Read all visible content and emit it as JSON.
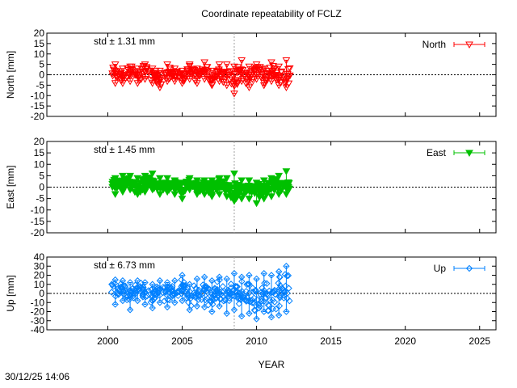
{
  "footer_timestamp": "30/12/25 14:06",
  "chart_data": [
    {
      "type": "scatter",
      "title": "Coordinate repeatability of FCLZ",
      "ylabel": "North [mm]",
      "xlabel": "",
      "xlim": [
        1995.9,
        2026.1
      ],
      "ylim": [
        -20,
        20
      ],
      "yticks": [
        -20,
        -15,
        -10,
        -5,
        0,
        5,
        10,
        15,
        20
      ],
      "xticks": [
        2000,
        2005,
        2010,
        2015,
        2020,
        2025
      ],
      "legend": {
        "label": "North",
        "position": "top-right",
        "marker": "triangle-down-open"
      },
      "std_label": "std ± 1.31 mm",
      "color": "#ff0000",
      "series": {
        "name": "North",
        "x": [
          2000.5,
          2001.0,
          2001.5,
          2002.0,
          2002.5,
          2003.0,
          2003.5,
          2004.0,
          2004.5,
          2005.0,
          2005.5,
          2006.0,
          2006.5,
          2007.0,
          2007.5,
          2008.0,
          2008.5,
          2009.0,
          2009.5,
          2010.0,
          2010.5,
          2011.0,
          2011.5,
          2012.0
        ],
        "y": [
          0.5,
          -1.0,
          1.5,
          -0.5,
          2.0,
          0.0,
          -2.0,
          1.0,
          0.5,
          -1.0,
          1.5,
          0.0,
          2.0,
          -1.5,
          1.0,
          0.0,
          -3.0,
          1.0,
          -1.0,
          2.0,
          -0.5,
          1.5,
          0.0,
          -1.0
        ],
        "ymin": [
          -4,
          -4,
          -3,
          -4,
          -2,
          -4,
          -6,
          -3,
          -3,
          -4,
          -2,
          -4,
          -2,
          -5,
          -3,
          -5,
          -9,
          -3,
          -6,
          -2,
          -5,
          -3,
          -5,
          -6
        ],
        "ymax": [
          5,
          3,
          4,
          3,
          5,
          3,
          2,
          5,
          3,
          2,
          5,
          3,
          6,
          2,
          5,
          5,
          4,
          7,
          4,
          5,
          3,
          6,
          4,
          7
        ]
      }
    },
    {
      "type": "scatter",
      "title": "",
      "ylabel": "East [mm]",
      "xlabel": "",
      "xlim": [
        1995.9,
        2026.1
      ],
      "ylim": [
        -20,
        20
      ],
      "yticks": [
        -20,
        -15,
        -10,
        -5,
        0,
        5,
        10,
        15,
        20
      ],
      "xticks": [
        2000,
        2005,
        2010,
        2015,
        2020,
        2025
      ],
      "legend": {
        "label": "East",
        "position": "top-right",
        "marker": "triangle-down-filled"
      },
      "std_label": "std ± 1.45 mm",
      "color": "#00c000",
      "series": {
        "name": "East",
        "x": [
          2000.5,
          2001.0,
          2001.5,
          2002.0,
          2002.5,
          2003.0,
          2003.5,
          2004.0,
          2004.5,
          2005.0,
          2005.5,
          2006.0,
          2006.5,
          2007.0,
          2007.5,
          2008.0,
          2008.5,
          2009.0,
          2009.5,
          2010.0,
          2010.5,
          2011.0,
          2011.5,
          2012.0
        ],
        "y": [
          1.0,
          1.5,
          2.0,
          0.5,
          1.5,
          2.0,
          0.5,
          1.0,
          0.0,
          -1.0,
          1.5,
          0.5,
          0.0,
          -0.5,
          0.5,
          0.0,
          -2.0,
          -1.0,
          -1.5,
          -2.0,
          -1.0,
          0.0,
          0.5,
          1.0
        ],
        "ymin": [
          -3,
          -2,
          -1,
          -3,
          -2,
          -1,
          -3,
          -2,
          -3,
          -5,
          -1,
          -3,
          -3,
          -4,
          -3,
          -4,
          -6,
          -5,
          -5,
          -7,
          -5,
          -4,
          -3,
          -3
        ],
        "ymax": [
          4,
          5,
          5,
          4,
          5,
          6,
          4,
          4,
          3,
          2,
          4,
          3,
          3,
          3,
          4,
          4,
          6,
          3,
          3,
          2,
          3,
          4,
          5,
          7
        ]
      }
    },
    {
      "type": "scatter",
      "title": "",
      "ylabel": "Up [mm]",
      "xlabel": "YEAR",
      "xlim": [
        1995.9,
        2026.1
      ],
      "ylim": [
        -40,
        40
      ],
      "yticks": [
        -40,
        -30,
        -20,
        -10,
        0,
        10,
        20,
        30,
        40
      ],
      "xticks": [
        2000,
        2005,
        2010,
        2015,
        2020,
        2025
      ],
      "legend": {
        "label": "Up",
        "position": "top-right",
        "marker": "diamond-open"
      },
      "std_label": "std ± 6.73 mm",
      "color": "#0080ff",
      "series": {
        "name": "Up",
        "x": [
          2000.5,
          2001.0,
          2001.5,
          2002.0,
          2002.5,
          2003.0,
          2003.5,
          2004.0,
          2004.5,
          2005.0,
          2005.5,
          2006.0,
          2006.5,
          2007.0,
          2007.5,
          2008.0,
          2008.5,
          2009.0,
          2009.5,
          2010.0,
          2010.5,
          2011.0,
          2011.5,
          2012.0
        ],
        "y": [
          2.0,
          3.0,
          0.0,
          4.0,
          1.0,
          -2.0,
          3.0,
          0.0,
          2.0,
          6.0,
          -4.0,
          0.0,
          2.0,
          -3.0,
          1.0,
          -2.0,
          3.0,
          -5.0,
          0.0,
          -8.0,
          2.0,
          -4.0,
          0.0,
          5.0
        ],
        "ymin": [
          -12,
          -8,
          -18,
          -8,
          -12,
          -16,
          -10,
          -15,
          -10,
          -8,
          -18,
          -14,
          -15,
          -20,
          -14,
          -22,
          -18,
          -25,
          -22,
          -28,
          -20,
          -26,
          -24,
          -20
        ],
        "ymax": [
          15,
          14,
          12,
          14,
          12,
          10,
          14,
          12,
          14,
          20,
          10,
          16,
          18,
          14,
          18,
          16,
          22,
          18,
          20,
          16,
          22,
          20,
          24,
          30
        ]
      }
    }
  ]
}
